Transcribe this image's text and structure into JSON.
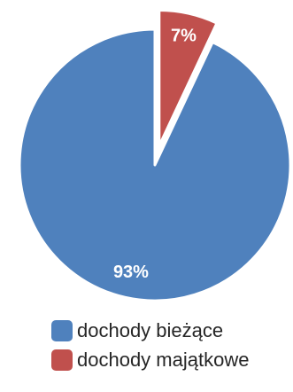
{
  "chart_data": {
    "type": "pie",
    "series": [
      {
        "name": "dochody bieżące",
        "value": 93,
        "label": "93%",
        "color": "#4F81BD"
      },
      {
        "name": "dochody majątkowe",
        "value": 7,
        "label": "7%",
        "color": "#C0504D"
      }
    ],
    "exploded": [
      "dochody majątkowe"
    ],
    "legend_position": "bottom"
  }
}
